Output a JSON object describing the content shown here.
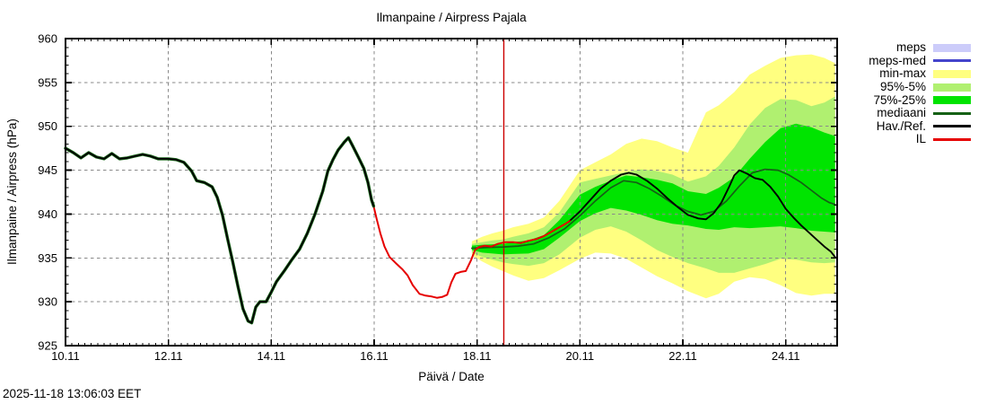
{
  "chart_data": {
    "type": "line",
    "station": "Pajala",
    "title": "Ilmanpaine / Airpress Pajala",
    "ylabel": "Ilmanpaine / Airpress (hPa)",
    "xlabel": "Päivä / Date",
    "timestamp": "2025-11-18 13:06:03 EET",
    "units": "hPa",
    "x_axis_unit": "days_since_10.11_00:00",
    "x_range": [
      0,
      15
    ],
    "y_range": [
      925,
      960
    ],
    "x_ticks": [
      {
        "t": 0,
        "label": "10.11"
      },
      {
        "t": 2,
        "label": "12.11"
      },
      {
        "t": 4,
        "label": "14.11"
      },
      {
        "t": 6,
        "label": "16.11"
      },
      {
        "t": 8,
        "label": "18.11"
      },
      {
        "t": 10,
        "label": "20.11"
      },
      {
        "t": 12,
        "label": "22.11"
      },
      {
        "t": 14,
        "label": "24.11"
      }
    ],
    "y_ticks": [
      925,
      930,
      935,
      940,
      945,
      950,
      955,
      960
    ],
    "grid": "dashed-gray-on",
    "grid_color": "#8a8a8a",
    "now_marker": {
      "t": 8.52,
      "color": "#CC0000"
    },
    "legend": {
      "position": "top-right-outside",
      "items": [
        {
          "label": "meps",
          "swatch": "band",
          "color": "#CCCCFA"
        },
        {
          "label": "meps-med",
          "swatch": "line",
          "color": "#4444CC"
        },
        {
          "label": "min-max",
          "swatch": "band",
          "color": "#FFFF80"
        },
        {
          "label": "95%-5%",
          "swatch": "band",
          "color": "#B0F070"
        },
        {
          "label": "75%-25%",
          "swatch": "band",
          "color": "#00E400"
        },
        {
          "label": "mediaani",
          "swatch": "line",
          "color": "#156015"
        },
        {
          "label": "Hav./Ref.",
          "swatch": "line",
          "color": "#000000"
        },
        {
          "label": "IL",
          "swatch": "line",
          "color": "#E60000"
        }
      ]
    },
    "bands": {
      "t": [
        7.9,
        8.1,
        8.3,
        8.5,
        8.7,
        9.0,
        9.3,
        9.6,
        10.0,
        10.3,
        10.6,
        10.9,
        11.2,
        11.5,
        11.8,
        12.1,
        12.45,
        12.7,
        13.0,
        13.3,
        13.6,
        13.9,
        14.2,
        14.5,
        14.75,
        14.96
      ],
      "min_max": {
        "legend": "min-max",
        "color": "#FFFF80",
        "upper": [
          936.9,
          937.4,
          937.8,
          938.1,
          938.5,
          938.9,
          939.6,
          941.5,
          945.0,
          945.9,
          946.8,
          948.0,
          948.6,
          948.3,
          947.6,
          947.0,
          951.6,
          952.4,
          953.9,
          955.9,
          956.9,
          957.8,
          958.1,
          958.2,
          957.8,
          957.2
        ],
        "lower": [
          935.3,
          934.6,
          934.0,
          933.5,
          933.0,
          932.4,
          932.7,
          933.6,
          934.9,
          935.6,
          935.5,
          934.9,
          933.9,
          932.9,
          932.1,
          931.2,
          930.4,
          930.9,
          932.3,
          932.8,
          932.6,
          931.9,
          931.0,
          930.7,
          930.9,
          930.9
        ]
      },
      "p95_5": {
        "legend": "95%-5%",
        "color": "#B0F070",
        "upper": [
          936.6,
          936.8,
          937.0,
          937.1,
          937.4,
          937.8,
          938.5,
          940.2,
          943.6,
          944.0,
          944.4,
          944.8,
          945.1,
          944.9,
          944.5,
          943.7,
          944.3,
          945.5,
          947.6,
          950.2,
          952.1,
          953.1,
          953.0,
          952.3,
          952.7,
          953.4
        ],
        "lower": [
          935.6,
          935.1,
          934.8,
          934.5,
          934.3,
          934.1,
          934.4,
          935.4,
          937.3,
          938.2,
          938.6,
          938.0,
          937.0,
          935.9,
          935.1,
          934.4,
          933.8,
          933.3,
          933.3,
          933.8,
          934.3,
          934.9,
          934.8,
          934.5,
          934.4,
          934.5
        ]
      },
      "p75_25": {
        "legend": "75%-25%",
        "color": "#00E400",
        "upper": [
          936.4,
          936.5,
          936.55,
          936.6,
          936.8,
          937.0,
          937.6,
          939.3,
          942.2,
          943.1,
          943.8,
          944.4,
          944.2,
          943.9,
          943.5,
          942.6,
          942.3,
          943.0,
          944.2,
          946.3,
          948.2,
          949.8,
          950.3,
          949.9,
          949.3,
          948.9
        ],
        "lower": [
          935.9,
          935.6,
          935.5,
          935.4,
          935.45,
          935.5,
          936.0,
          937.3,
          939.2,
          940.1,
          940.7,
          940.4,
          939.9,
          939.3,
          938.9,
          938.7,
          938.3,
          938.2,
          938.5,
          938.4,
          938.5,
          938.6,
          938.4,
          938.1,
          938.0,
          937.9
        ]
      }
    },
    "series": [
      {
        "name": "mediaani",
        "legend": "mediaani",
        "color": "#156015",
        "width": 1.7,
        "points": [
          [
            7.9,
            936.1
          ],
          [
            8.2,
            936.2
          ],
          [
            8.5,
            936.25
          ],
          [
            8.8,
            936.35
          ],
          [
            9.1,
            936.6
          ],
          [
            9.4,
            937.3
          ],
          [
            9.7,
            938.3
          ],
          [
            10.0,
            939.8
          ],
          [
            10.3,
            941.5
          ],
          [
            10.6,
            943.0
          ],
          [
            10.85,
            943.8
          ],
          [
            11.1,
            943.6
          ],
          [
            11.35,
            942.9
          ],
          [
            11.6,
            942.0
          ],
          [
            11.85,
            941.0
          ],
          [
            12.1,
            940.3
          ],
          [
            12.35,
            939.9
          ],
          [
            12.6,
            940.3
          ],
          [
            12.85,
            941.5
          ],
          [
            13.1,
            943.2
          ],
          [
            13.35,
            944.7
          ],
          [
            13.6,
            945.1
          ],
          [
            13.85,
            945.0
          ],
          [
            14.05,
            944.5
          ],
          [
            14.3,
            943.6
          ],
          [
            14.5,
            942.7
          ],
          [
            14.7,
            941.8
          ],
          [
            14.85,
            941.3
          ],
          [
            14.96,
            941.1
          ]
        ]
      },
      {
        "name": "reference-forecast",
        "legend": "Hav./Ref.",
        "color": "#000000",
        "width": 1.9,
        "points": [
          [
            9.78,
            939.1
          ],
          [
            10.0,
            940.3
          ],
          [
            10.2,
            941.6
          ],
          [
            10.4,
            942.9
          ],
          [
            10.6,
            943.8
          ],
          [
            10.8,
            944.5
          ],
          [
            10.95,
            944.7
          ],
          [
            11.1,
            944.5
          ],
          [
            11.3,
            943.8
          ],
          [
            11.5,
            942.9
          ],
          [
            11.7,
            941.8
          ],
          [
            11.9,
            940.8
          ],
          [
            12.1,
            939.9
          ],
          [
            12.3,
            939.5
          ],
          [
            12.45,
            939.4
          ],
          [
            12.6,
            940.1
          ],
          [
            12.75,
            941.3
          ],
          [
            12.9,
            943.1
          ],
          [
            13.0,
            944.4
          ],
          [
            13.1,
            945.0
          ],
          [
            13.25,
            944.6
          ],
          [
            13.4,
            944.1
          ],
          [
            13.55,
            943.9
          ],
          [
            13.7,
            943.1
          ],
          [
            13.85,
            942.0
          ],
          [
            14.0,
            940.6
          ],
          [
            14.15,
            939.6
          ],
          [
            14.3,
            938.7
          ],
          [
            14.45,
            937.9
          ],
          [
            14.6,
            937.1
          ],
          [
            14.75,
            936.3
          ],
          [
            14.88,
            935.7
          ],
          [
            14.96,
            935.1
          ]
        ]
      },
      {
        "name": "il-forecast",
        "legend": "IL",
        "color": "#E60000",
        "width": 2.0,
        "points": [
          [
            5.99,
            940.9
          ],
          [
            6.05,
            939.4
          ],
          [
            6.12,
            937.8
          ],
          [
            6.2,
            936.3
          ],
          [
            6.3,
            935.1
          ],
          [
            6.42,
            934.4
          ],
          [
            6.55,
            933.7
          ],
          [
            6.65,
            933.0
          ],
          [
            6.75,
            931.9
          ],
          [
            6.88,
            930.9
          ],
          [
            7.0,
            930.7
          ],
          [
            7.12,
            930.6
          ],
          [
            7.22,
            930.45
          ],
          [
            7.32,
            930.55
          ],
          [
            7.42,
            930.8
          ],
          [
            7.5,
            932.2
          ],
          [
            7.58,
            933.2
          ],
          [
            7.68,
            933.4
          ],
          [
            7.78,
            933.5
          ],
          [
            7.88,
            934.7
          ],
          [
            7.96,
            935.9
          ],
          [
            8.04,
            936.25
          ],
          [
            8.15,
            936.4
          ],
          [
            8.28,
            936.3
          ],
          [
            8.4,
            936.6
          ],
          [
            8.55,
            936.8
          ],
          [
            8.7,
            936.8
          ],
          [
            8.85,
            936.7
          ],
          [
            9.0,
            936.95
          ],
          [
            9.15,
            937.15
          ],
          [
            9.3,
            937.5
          ],
          [
            9.45,
            938.0
          ],
          [
            9.6,
            938.5
          ],
          [
            9.72,
            938.9
          ],
          [
            9.8,
            939.2
          ]
        ]
      },
      {
        "name": "havainto-observation",
        "legend": "Hav./Ref.",
        "color": "#000000",
        "width": 1.7,
        "underlay_color": "#156015",
        "underlay_width": 3.4,
        "points": [
          [
            0,
            947.5
          ],
          [
            0.15,
            947.0
          ],
          [
            0.3,
            946.4
          ],
          [
            0.45,
            947.0
          ],
          [
            0.6,
            946.5
          ],
          [
            0.75,
            946.3
          ],
          [
            0.9,
            946.9
          ],
          [
            1.05,
            946.3
          ],
          [
            1.2,
            946.4
          ],
          [
            1.35,
            946.6
          ],
          [
            1.5,
            946.8
          ],
          [
            1.65,
            946.6
          ],
          [
            1.8,
            946.3
          ],
          [
            2.0,
            946.3
          ],
          [
            2.15,
            946.2
          ],
          [
            2.3,
            945.9
          ],
          [
            2.45,
            944.9
          ],
          [
            2.55,
            943.8
          ],
          [
            2.7,
            943.6
          ],
          [
            2.85,
            943.1
          ],
          [
            2.95,
            941.9
          ],
          [
            3.05,
            939.9
          ],
          [
            3.15,
            937.2
          ],
          [
            3.25,
            934.6
          ],
          [
            3.35,
            931.8
          ],
          [
            3.45,
            929.2
          ],
          [
            3.55,
            927.8
          ],
          [
            3.62,
            927.6
          ],
          [
            3.7,
            929.4
          ],
          [
            3.78,
            930.0
          ],
          [
            3.9,
            930.0
          ],
          [
            4.0,
            931.1
          ],
          [
            4.1,
            932.3
          ],
          [
            4.25,
            933.5
          ],
          [
            4.4,
            934.8
          ],
          [
            4.55,
            936.0
          ],
          [
            4.7,
            937.8
          ],
          [
            4.85,
            940.0
          ],
          [
            5.0,
            942.6
          ],
          [
            5.1,
            944.9
          ],
          [
            5.2,
            946.2
          ],
          [
            5.3,
            947.3
          ],
          [
            5.42,
            948.2
          ],
          [
            5.5,
            948.7
          ],
          [
            5.58,
            947.8
          ],
          [
            5.7,
            946.4
          ],
          [
            5.8,
            945.2
          ],
          [
            5.88,
            943.6
          ],
          [
            5.95,
            941.6
          ],
          [
            5.99,
            940.9
          ]
        ]
      }
    ]
  }
}
